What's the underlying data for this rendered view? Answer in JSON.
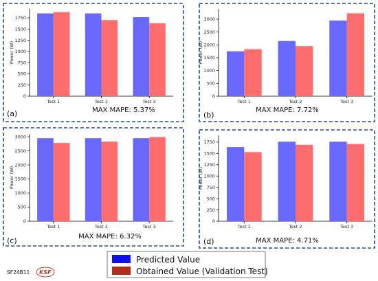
{
  "chart_data": [
    {
      "panel": "(a)",
      "type": "bar",
      "categories": [
        "Test 1",
        "Test 2",
        "Test 3"
      ],
      "ylabel": "Power (W)",
      "yticks": [
        0,
        250,
        500,
        750,
        1000,
        1250,
        1500,
        1750
      ],
      "ylim": [
        0,
        1950
      ],
      "series": [
        {
          "name": "Predicted Value",
          "values": [
            1850,
            1850,
            1765
          ]
        },
        {
          "name": "Obtained Value (Validation Test)",
          "values": [
            1880,
            1700,
            1630
          ]
        }
      ],
      "mape": "MAX MAPE: 5.37%"
    },
    {
      "panel": "(b)",
      "type": "bar",
      "categories": [
        "Test 1",
        "Test 2",
        "Test 3"
      ],
      "ylabel": "Power (W)",
      "yticks": [
        0,
        500,
        1000,
        1500,
        2000,
        2500,
        3000
      ],
      "ylim": [
        0,
        3400
      ],
      "series": [
        {
          "name": "Predicted Value",
          "values": [
            1750,
            2150,
            2950
          ]
        },
        {
          "name": "Obtained Value (Validation Test)",
          "values": [
            1830,
            1950,
            3230
          ]
        }
      ],
      "mape": "MAX MAPE: 7.72%"
    },
    {
      "panel": "(c)",
      "type": "bar",
      "categories": [
        "Test 1",
        "Test 2",
        "Test 3"
      ],
      "ylabel": "Power (W)",
      "yticks": [
        0,
        500,
        1000,
        1500,
        2000,
        2500,
        3000
      ],
      "ylim": [
        0,
        3100
      ],
      "series": [
        {
          "name": "Predicted Value",
          "values": [
            2950,
            2950,
            2950
          ]
        },
        {
          "name": "Obtained Value (Validation Test)",
          "values": [
            2780,
            2830,
            2990
          ]
        }
      ],
      "mape": "MAX MAPE: 6.32%"
    },
    {
      "panel": "(d)",
      "type": "bar",
      "categories": [
        "Test 1",
        "Test 2",
        "Test 3"
      ],
      "ylabel": "Power (W)",
      "yticks": [
        0,
        250,
        500,
        750,
        1000,
        1250,
        1500,
        1750
      ],
      "ylim": [
        0,
        1900
      ],
      "series": [
        {
          "name": "Predicted Value",
          "values": [
            1640,
            1760,
            1760
          ]
        },
        {
          "name": "Obtained Value (Validation Test)",
          "values": [
            1530,
            1690,
            1710
          ]
        }
      ],
      "mape": "MAX MAPE: 4.71%"
    }
  ],
  "legend": {
    "items": [
      {
        "label": "Predicted Value",
        "color": "#1010ee"
      },
      {
        "label": "Obtained Value (Validation Test)",
        "color": "#b52a1a"
      }
    ]
  },
  "colors": {
    "predicted_bar": "#6868ff",
    "obtained_bar": "#ff6e6e",
    "panel_border": "#2a4a86"
  },
  "footer": {
    "code": "SF24B11",
    "logo_text": "KSF"
  }
}
